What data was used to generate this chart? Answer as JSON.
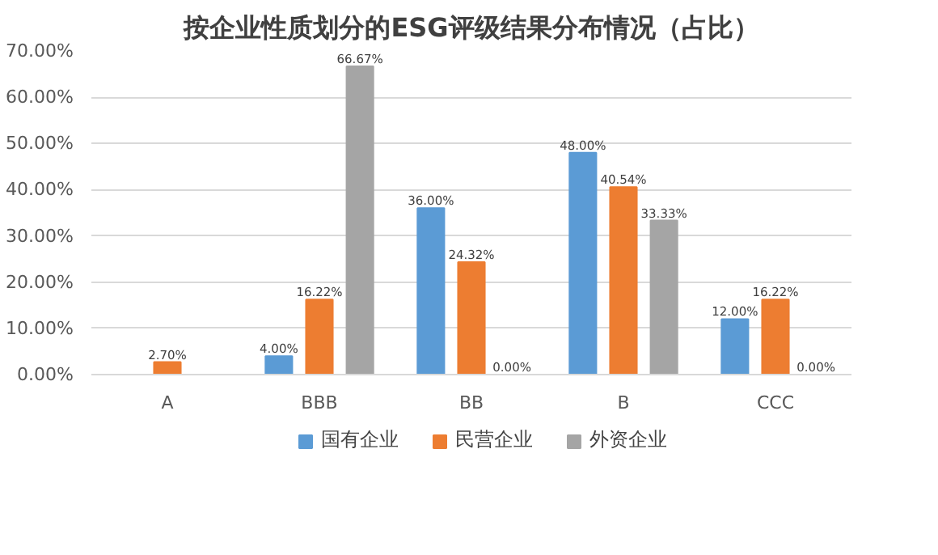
{
  "chart_data": {
    "type": "bar",
    "title": "按企业性质划分的ESG评级结果分布情况（占比）",
    "categories": [
      "A",
      "BBB",
      "BB",
      "B",
      "CCC"
    ],
    "series": [
      {
        "name": "国有企业",
        "color": "#5b9bd5",
        "values": [
          null,
          4.0,
          36.0,
          48.0,
          12.0
        ],
        "value_labels": [
          null,
          "4.00%",
          "36.00%",
          "48.00%",
          "12.00%"
        ]
      },
      {
        "name": "民营企业",
        "color": "#ed7d31",
        "values": [
          2.7,
          16.22,
          24.32,
          40.54,
          16.22
        ],
        "value_labels": [
          "2.70%",
          "16.22%",
          "24.32%",
          "40.54%",
          "16.22%"
        ]
      },
      {
        "name": "外资企业",
        "color": "#a5a5a5",
        "values": [
          null,
          66.67,
          0.0,
          33.33,
          0.0
        ],
        "value_labels": [
          null,
          "66.67%",
          "0.00%",
          "33.33%",
          "0.00%"
        ]
      }
    ],
    "ylim": [
      0,
      70
    ],
    "yticks": [
      {
        "value": 0,
        "label": "0.00%"
      },
      {
        "value": 10,
        "label": "10.00%"
      },
      {
        "value": 20,
        "label": "20.00%"
      },
      {
        "value": 30,
        "label": "30.00%"
      },
      {
        "value": 40,
        "label": "40.00%"
      },
      {
        "value": 50,
        "label": "50.00%"
      },
      {
        "value": 60,
        "label": "60.00%"
      },
      {
        "value": 70,
        "label": "70.00%"
      }
    ],
    "grid": "y",
    "legend": "bottom"
  }
}
